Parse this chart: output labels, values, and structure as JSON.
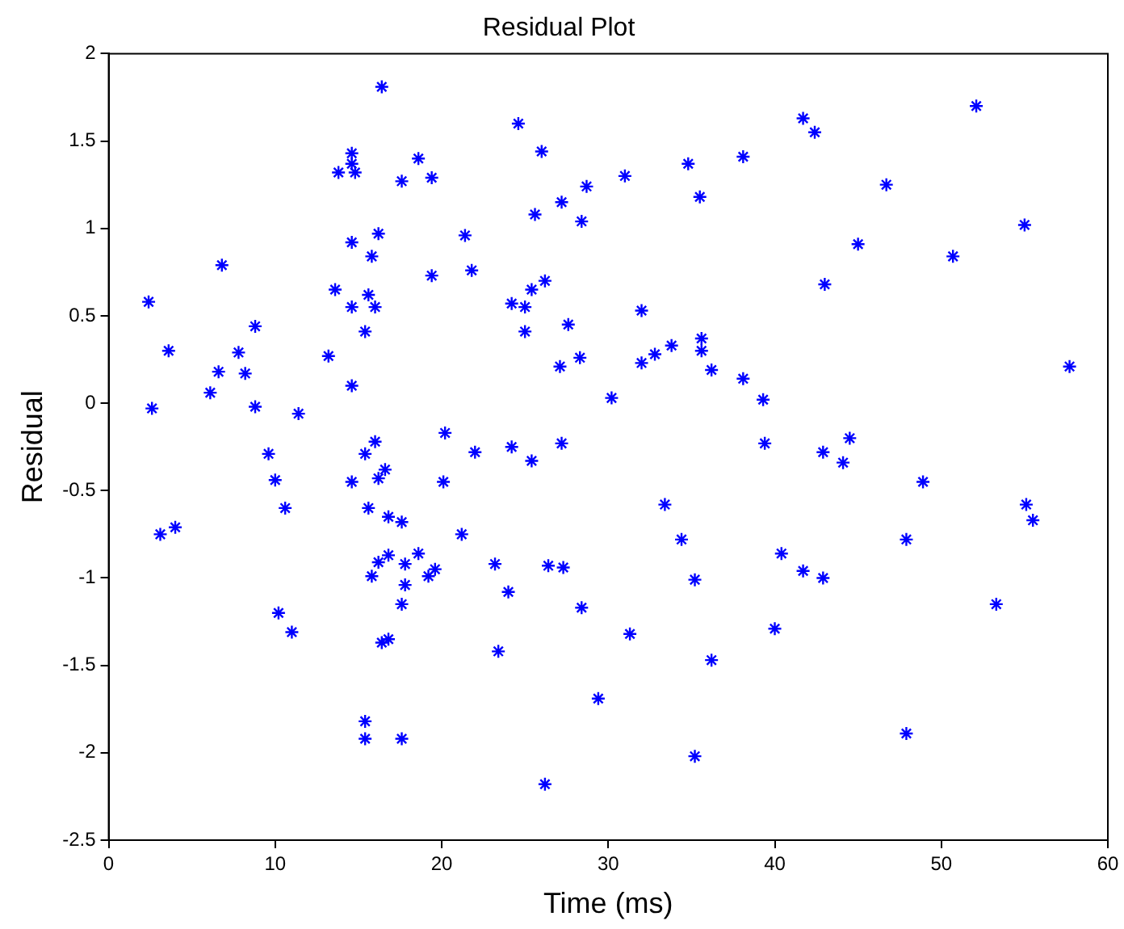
{
  "chart_data": {
    "type": "scatter",
    "title": "Residual Plot",
    "xlabel": "Time (ms)",
    "ylabel": "Residual",
    "x": [
      2.4,
      2.6,
      3.6,
      6.8,
      6.1,
      6.6,
      7.8,
      8.2,
      8.8,
      8.8,
      11.4,
      13.2,
      13.6,
      13.8,
      14.6,
      14.6,
      14.8,
      14.6,
      14.6,
      14.6,
      15.4,
      15.6,
      15.8,
      16.0,
      16.2,
      16.4,
      17.6,
      18.6,
      19.4,
      19.4,
      16.0,
      20.2,
      24.6,
      26.0,
      28.7,
      27.2,
      25.6,
      28.4,
      31.0,
      34.8,
      38.1,
      35.5,
      21.4,
      21.8,
      25.4,
      26.2,
      24.2,
      25.0,
      25.0,
      27.6,
      32.0,
      35.6,
      35.6,
      33.8,
      32.8,
      32.0,
      28.3,
      27.1,
      36.2,
      38.1,
      39.3,
      30.2,
      24.2,
      27.2,
      39.4,
      41.7,
      42.4,
      52.1,
      46.7,
      55.0,
      45.0,
      50.7,
      43.0,
      57.7,
      44.5,
      3.1,
      4.0,
      9.6,
      10.0,
      10.6,
      10.2,
      11.0,
      14.6,
      15.4,
      16.2,
      16.6,
      15.6,
      16.8,
      17.6,
      15.8,
      16.2,
      16.8,
      17.8,
      18.6,
      17.8,
      17.6,
      19.2,
      19.6,
      16.4,
      16.8,
      15.4,
      15.4,
      17.6,
      20.1,
      22.0,
      25.4,
      21.2,
      23.2,
      26.4,
      27.3,
      24.0,
      28.4,
      33.4,
      34.4,
      35.2,
      31.3,
      23.4,
      29.4,
      35.2,
      26.2,
      36.2,
      40.0,
      40.4,
      41.7,
      42.9,
      42.9,
      44.1,
      48.9,
      47.9,
      53.3,
      55.1,
      55.5,
      47.9
    ],
    "values": [
      0.58,
      -0.03,
      0.3,
      0.79,
      0.06,
      0.18,
      0.29,
      0.17,
      0.44,
      -0.02,
      -0.06,
      0.27,
      0.65,
      1.32,
      1.43,
      1.37,
      1.32,
      0.92,
      0.55,
      0.1,
      0.41,
      0.62,
      0.84,
      0.55,
      0.97,
      1.81,
      1.27,
      1.4,
      1.29,
      0.73,
      -0.22,
      -0.17,
      1.6,
      1.44,
      1.24,
      1.15,
      1.08,
      1.04,
      1.3,
      1.37,
      1.41,
      1.18,
      0.96,
      0.76,
      0.65,
      0.7,
      0.57,
      0.55,
      0.41,
      0.45,
      0.53,
      0.37,
      0.3,
      0.33,
      0.28,
      0.23,
      0.26,
      0.21,
      0.19,
      0.14,
      0.02,
      0.03,
      -0.25,
      -0.23,
      -0.23,
      1.63,
      1.55,
      1.7,
      1.25,
      1.02,
      0.91,
      0.84,
      0.68,
      0.21,
      -0.2,
      -0.75,
      -0.71,
      -0.29,
      -0.44,
      -0.6,
      -1.2,
      -1.31,
      -0.45,
      -0.29,
      -0.43,
      -0.38,
      -0.6,
      -0.65,
      -0.68,
      -0.99,
      -0.91,
      -0.87,
      -0.92,
      -0.86,
      -1.04,
      -1.15,
      -0.99,
      -0.95,
      -1.37,
      -1.35,
      -1.82,
      -1.92,
      -1.92,
      -0.45,
      -0.28,
      -0.33,
      -0.75,
      -0.92,
      -0.93,
      -0.94,
      -1.08,
      -1.17,
      -0.58,
      -0.78,
      -1.01,
      -1.32,
      -1.42,
      -1.69,
      -2.02,
      -2.18,
      -1.47,
      -1.29,
      -0.86,
      -0.96,
      -1.0,
      -0.28,
      -0.34,
      -0.45,
      -0.78,
      -1.15,
      -0.58,
      -0.67,
      -1.89
    ],
    "color": "#0000ff",
    "marker": "cross",
    "xlim": [
      0,
      60
    ],
    "xticks": [
      0,
      10,
      20,
      30,
      40,
      50,
      60
    ],
    "ylim": [
      -2.5,
      2
    ],
    "yticks": [
      -2.5,
      -2,
      -1.5,
      -1,
      -0.5,
      0,
      0.5,
      1,
      1.5,
      2
    ],
    "grid": false,
    "legend": false
  }
}
